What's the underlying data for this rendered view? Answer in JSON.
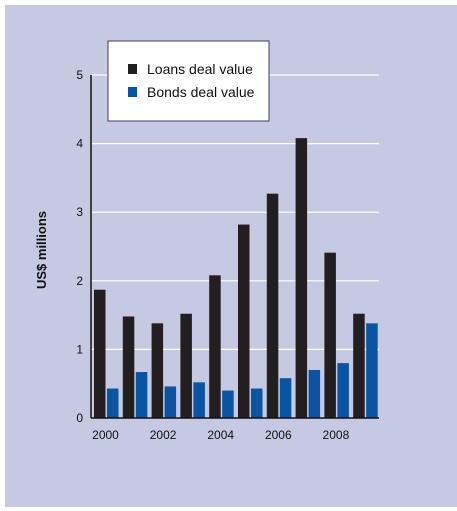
{
  "chart_data": {
    "type": "bar",
    "title": "",
    "xlabel": "",
    "ylabel": "US$ millions",
    "ylim": [
      0,
      5
    ],
    "yticks": [
      0,
      1,
      2,
      3,
      4,
      5
    ],
    "categories": [
      "2000",
      "2001",
      "2002",
      "2003",
      "2004",
      "2005",
      "2006",
      "2007",
      "2008",
      "2009"
    ],
    "xtick_labels": [
      "2000",
      "",
      "2002",
      "",
      "2004",
      "",
      "2006",
      "",
      "2008",
      ""
    ],
    "series": [
      {
        "name": "Loans deal value",
        "color": "#231f20",
        "values": [
          1.87,
          1.48,
          1.38,
          1.52,
          2.08,
          2.82,
          3.27,
          4.08,
          2.41,
          1.52
        ]
      },
      {
        "name": "Bonds deal value",
        "color": "#0a55a3",
        "values": [
          0.43,
          0.67,
          0.46,
          0.52,
          0.4,
          0.43,
          0.58,
          0.7,
          0.8,
          1.38
        ]
      }
    ],
    "grid": true,
    "legend_position": "top-left"
  }
}
